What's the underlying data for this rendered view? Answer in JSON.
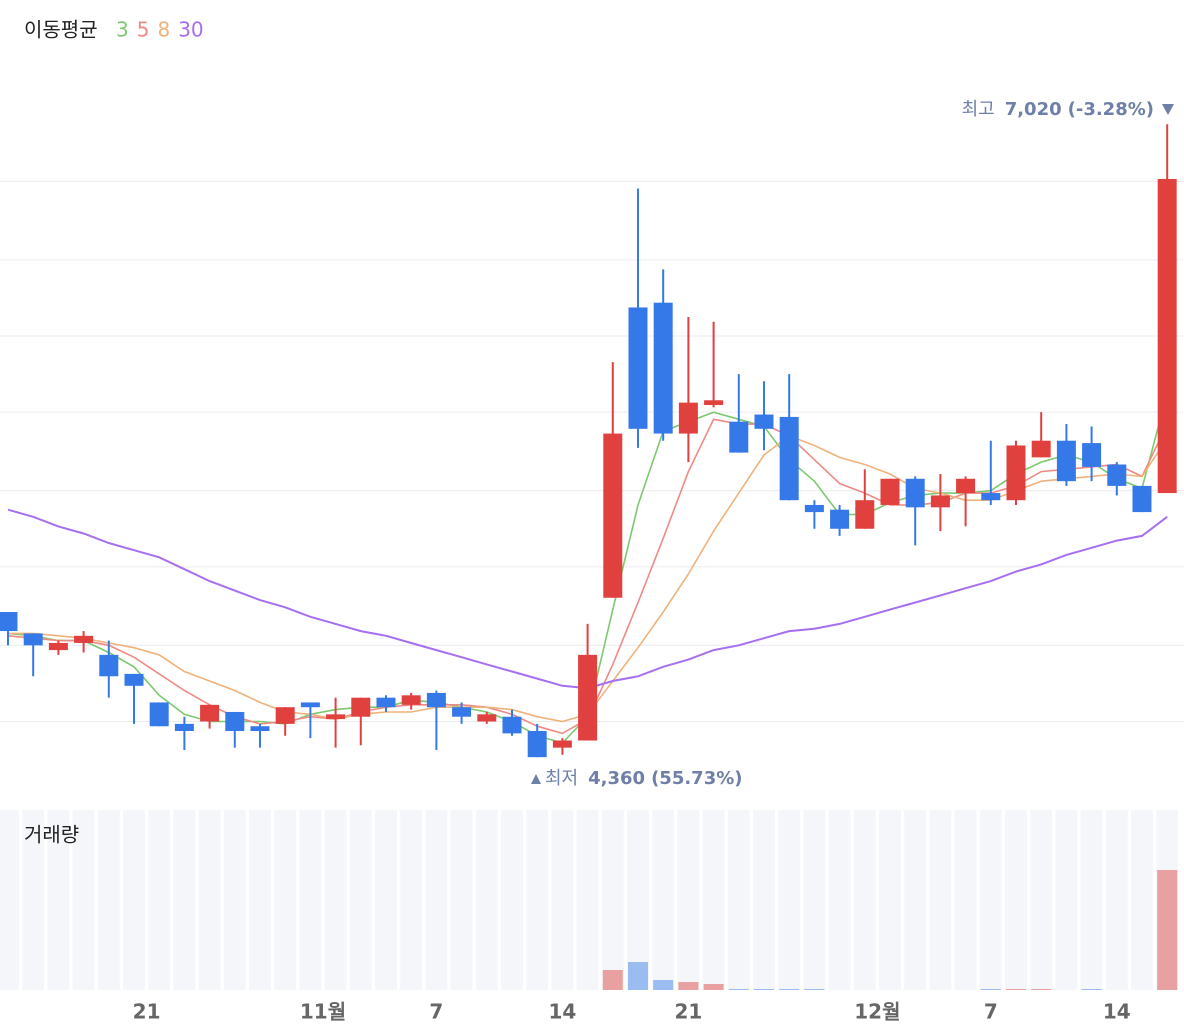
{
  "chart_data": {
    "type": "candlestick",
    "legend_title": "이동평균",
    "up_color": "#e0413f",
    "down_color": "#3579e8",
    "xlim": [
      -0.317,
      46.667
    ],
    "ylim": [
      4180,
      7290
    ],
    "yticks": [
      4510,
      4830,
      5160,
      5480,
      5810,
      6130,
      6450,
      6780
    ],
    "grid": true,
    "xticks": [
      {
        "value": 5.5,
        "label": "21"
      },
      {
        "value": 12.5,
        "label": "11월"
      },
      {
        "value": 17,
        "label": "7"
      },
      {
        "value": 22,
        "label": "14"
      },
      {
        "value": 27,
        "label": "21"
      },
      {
        "value": 34.5,
        "label": "12월"
      },
      {
        "value": 39,
        "label": "7"
      },
      {
        "value": 44,
        "label": "14"
      }
    ],
    "open": [
      4970,
      4880,
      4810,
      4840,
      4790,
      4710,
      4590,
      4500,
      4510,
      4550,
      4490,
      4500,
      4590,
      4520,
      4530,
      4610,
      4580,
      4630,
      4570,
      4510,
      4530,
      4470,
      4400,
      4430,
      5030,
      6250,
      6270,
      5720,
      5840,
      5770,
      5800,
      5790,
      5420,
      5400,
      5320,
      5420,
      5530,
      5410,
      5470,
      5470,
      5440,
      5620,
      5690,
      5680,
      5590,
      5500,
      5470
    ],
    "high": [
      4970,
      4880,
      4850,
      4890,
      4850,
      4710,
      4590,
      4530,
      4580,
      4550,
      4500,
      4570,
      4590,
      4610,
      4610,
      4620,
      4630,
      4640,
      4590,
      4550,
      4560,
      4500,
      4440,
      4920,
      6020,
      6750,
      6410,
      6210,
      6190,
      5970,
      5940,
      5970,
      5440,
      5420,
      5570,
      5530,
      5540,
      5550,
      5540,
      5690,
      5690,
      5810,
      5760,
      5750,
      5600,
      5500,
      7020
    ],
    "low": [
      4830,
      4700,
      4790,
      4800,
      4610,
      4500,
      4490,
      4390,
      4480,
      4400,
      4400,
      4450,
      4440,
      4400,
      4410,
      4550,
      4560,
      4390,
      4500,
      4500,
      4450,
      4360,
      4370,
      4430,
      5030,
      5660,
      5690,
      5600,
      5830,
      5640,
      5650,
      5440,
      5320,
      5290,
      5320,
      5420,
      5250,
      5310,
      5330,
      5420,
      5420,
      5620,
      5500,
      5520,
      5460,
      5390,
      5470
    ],
    "close": [
      4890,
      4830,
      4840,
      4870,
      4700,
      4660,
      4490,
      4470,
      4580,
      4470,
      4470,
      4570,
      4570,
      4540,
      4610,
      4570,
      4620,
      4570,
      4530,
      4540,
      4460,
      4360,
      4430,
      4790,
      5720,
      5740,
      5720,
      5850,
      5860,
      5640,
      5740,
      5440,
      5390,
      5320,
      5440,
      5530,
      5410,
      5460,
      5530,
      5440,
      5670,
      5690,
      5520,
      5580,
      5500,
      5390,
      6790
    ],
    "series": [
      {
        "name": "3",
        "color": "#7cc96f",
        "values": [
          4880,
          4870,
          4850,
          4850,
          4800,
          4740,
          4620,
          4540,
          4510,
          4510,
          4510,
          4500,
          4540,
          4560,
          4570,
          4570,
          4600,
          4590,
          4570,
          4550,
          4510,
          4450,
          4420,
          4530,
          4980,
          5420,
          5730,
          5770,
          5810,
          5780,
          5750,
          5610,
          5520,
          5380,
          5380,
          5430,
          5460,
          5470,
          5470,
          5480,
          5550,
          5600,
          5630,
          5600,
          5530,
          5490,
          5890
        ]
      },
      {
        "name": "5",
        "color": "#ee8a84",
        "values": [
          4870,
          4860,
          4850,
          4850,
          4830,
          4780,
          4710,
          4640,
          4580,
          4530,
          4500,
          4510,
          4530,
          4520,
          4550,
          4570,
          4580,
          4580,
          4580,
          4570,
          4540,
          4490,
          4460,
          4520,
          4750,
          5010,
          5280,
          5560,
          5780,
          5760,
          5760,
          5710,
          5610,
          5510,
          5470,
          5420,
          5420,
          5430,
          5470,
          5470,
          5500,
          5560,
          5570,
          5580,
          5590,
          5540,
          5760
        ]
      },
      {
        "name": "8",
        "color": "#f0b27a",
        "values": [
          4880,
          4880,
          4870,
          4860,
          4840,
          4820,
          4790,
          4720,
          4680,
          4640,
          4590,
          4550,
          4540,
          4520,
          4540,
          4550,
          4550,
          4570,
          4570,
          4570,
          4560,
          4530,
          4510,
          4540,
          4680,
          4820,
          4970,
          5130,
          5310,
          5470,
          5630,
          5710,
          5670,
          5620,
          5590,
          5550,
          5490,
          5470,
          5440,
          5440,
          5480,
          5520,
          5530,
          5540,
          5550,
          5540,
          5700
        ]
      },
      {
        "name": "30",
        "color": "#a66ff0",
        "values": [
          5400,
          5370,
          5330,
          5300,
          5260,
          5230,
          5200,
          5150,
          5100,
          5060,
          5020,
          4990,
          4950,
          4920,
          4890,
          4870,
          4840,
          4810,
          4780,
          4750,
          4720,
          4690,
          4660,
          4650,
          4680,
          4700,
          4740,
          4770,
          4810,
          4830,
          4860,
          4890,
          4900,
          4920,
          4950,
          4980,
          5010,
          5040,
          5070,
          5100,
          5140,
          5170,
          5210,
          5240,
          5270,
          5290,
          5370
        ]
      }
    ],
    "high_annotation": {
      "label": "최고",
      "value": 7020,
      "value_label": "7,020",
      "change": "(-3.28%)"
    },
    "low_annotation": {
      "label": "최저",
      "value": 4360,
      "value_label": "4,360",
      "change": "(55.73%)"
    },
    "volume": {
      "title": "거래량",
      "up_color": "#e8a0a0",
      "down_color": "#9bbcf0",
      "ylim": [
        0,
        900
      ],
      "values": [
        0,
        0,
        0,
        0,
        0,
        0,
        0,
        0,
        0,
        0,
        0,
        0,
        0,
        0,
        0,
        0,
        0,
        0,
        0,
        0,
        0,
        0,
        0,
        0,
        100,
        140,
        50,
        40,
        30,
        5,
        5,
        5,
        5,
        0,
        0,
        0,
        0,
        0,
        0,
        5,
        5,
        5,
        0,
        5,
        0,
        0,
        600
      ]
    }
  }
}
